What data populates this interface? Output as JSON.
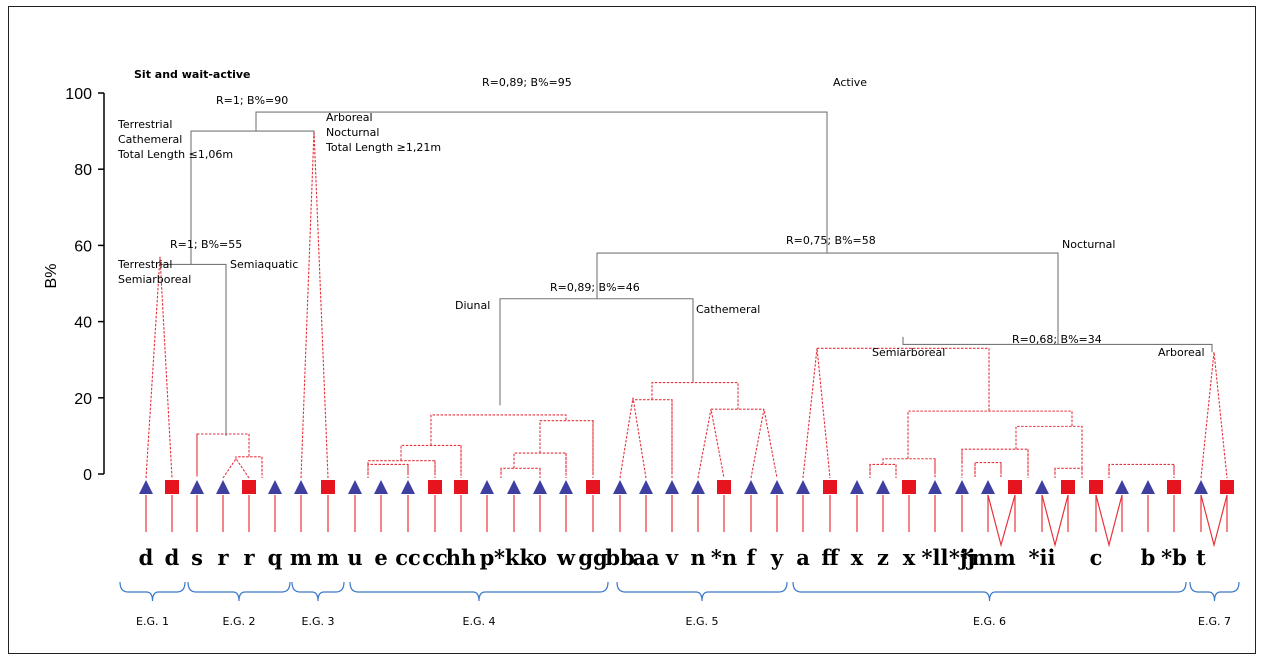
{
  "chart_data": {
    "type": "dendrogram",
    "ylabel": "B%",
    "ylim": [
      0,
      100
    ],
    "yticks": [
      0,
      20,
      40,
      60,
      80,
      100
    ],
    "leaves": [
      {
        "label": "d",
        "marker": "triangle"
      },
      {
        "label": "d",
        "marker": "square"
      },
      {
        "label": "s",
        "marker": "triangle"
      },
      {
        "label": "r",
        "marker": "triangle"
      },
      {
        "label": "r",
        "marker": "square"
      },
      {
        "label": "q",
        "marker": "triangle"
      },
      {
        "label": "m",
        "marker": "triangle"
      },
      {
        "label": "m",
        "marker": "square"
      },
      {
        "label": "u",
        "marker": "triangle"
      },
      {
        "label": "e",
        "marker": "triangle"
      },
      {
        "label": "cc",
        "marker": "triangle"
      },
      {
        "label": "cc",
        "marker": "square"
      },
      {
        "label": "hh",
        "marker": "square"
      },
      {
        "label": "p",
        "marker": "triangle"
      },
      {
        "label": "*kk",
        "marker": "triangle"
      },
      {
        "label": "o",
        "marker": "triangle"
      },
      {
        "label": "w",
        "marker": "triangle"
      },
      {
        "label": "gg",
        "marker": "square"
      },
      {
        "label": "bb",
        "marker": "triangle"
      },
      {
        "label": "aa",
        "marker": "triangle"
      },
      {
        "label": "v",
        "marker": "triangle"
      },
      {
        "label": "n",
        "marker": "triangle"
      },
      {
        "label": "*n",
        "marker": "square"
      },
      {
        "label": "f",
        "marker": "triangle"
      },
      {
        "label": "y",
        "marker": "triangle"
      },
      {
        "label": "a",
        "marker": "triangle"
      },
      {
        "label": "ff",
        "marker": "square"
      },
      {
        "label": "x",
        "marker": "triangle"
      },
      {
        "label": "z",
        "marker": "triangle"
      },
      {
        "label": "x",
        "marker": "square"
      },
      {
        "label": "*ll",
        "marker": "triangle"
      },
      {
        "label": "*jj",
        "marker": "triangle"
      },
      {
        "label": "*mm",
        "marker": "triangle"
      },
      {
        "label": "",
        "marker": "square"
      },
      {
        "label": "*ii",
        "marker": "triangle"
      },
      {
        "label": "",
        "marker": "square"
      },
      {
        "label": "c",
        "marker": "square"
      },
      {
        "label": "",
        "marker": "triangle"
      },
      {
        "label": "b",
        "marker": "triangle"
      },
      {
        "label": "*b",
        "marker": "square"
      },
      {
        "label": "t",
        "marker": "triangle"
      },
      {
        "label": "",
        "marker": "square"
      }
    ],
    "main_nodes": [
      {
        "label": "R=0,89; B%=95",
        "height": 95
      },
      {
        "label": "R=1; B%=90",
        "height": 90
      },
      {
        "label": "R=1; B%=55",
        "height": 55
      },
      {
        "label": "R=0,75; B%=58",
        "height": 58
      },
      {
        "label": "R=0,89; B%=46",
        "height": 46
      },
      {
        "label": "R=0,68; B%=34",
        "height": 34
      }
    ],
    "annotations": {
      "sit_wait": "Sit and wait-active",
      "active": "Active",
      "terrestrial_cathemeral": [
        "Terrestrial",
        "Cathemeral",
        "Total Length ≤1,06m"
      ],
      "arboreal_nocturnal": [
        "Arboreal",
        "Nocturnal",
        "Total Length ≥1,21m"
      ],
      "terrestrial_semiarboreal": [
        "Terrestrial",
        "Semiarboreal"
      ],
      "semiaquatic": "Semiaquatic",
      "diunal": "Diunal",
      "cathemeral": "Cathemeral",
      "nocturnal": "Nocturnal",
      "semiarboreal": "Semiarboreal",
      "arboreal": "Arboreal"
    },
    "groups": [
      "E.G. 1",
      "E.G. 2",
      "E.G. 3",
      "E.G. 4",
      "E.G. 5",
      "E.G. 6",
      "E.G. 7"
    ],
    "colors": {
      "triangle": "#3f3f9f",
      "square": "#e5141e",
      "main_tree": "#777777",
      "sub_tree": "#e8323c",
      "brace": "#3a78c8"
    }
  }
}
